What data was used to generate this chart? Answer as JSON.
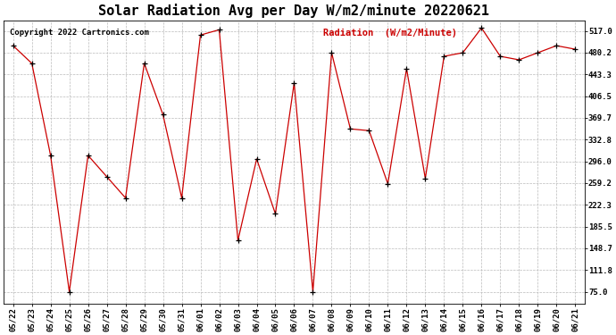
{
  "title": "Solar Radiation Avg per Day W/m2/minute 20220621",
  "copyright": "Copyright 2022 Cartronics.com",
  "legend_label": "Radiation  (W/m2/Minute)",
  "dates": [
    "05/22",
    "05/23",
    "05/24",
    "05/25",
    "05/26",
    "05/27",
    "05/28",
    "05/29",
    "05/30",
    "05/31",
    "06/01",
    "06/02",
    "06/03",
    "06/04",
    "06/05",
    "06/06",
    "06/07",
    "06/08",
    "06/09",
    "06/10",
    "06/11",
    "06/12",
    "06/13",
    "06/14",
    "06/15",
    "06/16",
    "06/17",
    "06/18",
    "06/19",
    "06/20",
    "06/21"
  ],
  "values": [
    492,
    462,
    306,
    75,
    306,
    270,
    234,
    462,
    375,
    234,
    510,
    519,
    162,
    300,
    207,
    429,
    75,
    480,
    351,
    348,
    258,
    453,
    267,
    474,
    480,
    522,
    474,
    468,
    480,
    492,
    486
  ],
  "line_color": "#cc0000",
  "marker": "+",
  "marker_color": "#000000",
  "yticks": [
    75.0,
    111.8,
    148.7,
    185.5,
    222.3,
    259.2,
    296.0,
    332.8,
    369.7,
    406.5,
    443.3,
    480.2,
    517.0
  ],
  "ylim": [
    55,
    535
  ],
  "background_color": "#ffffff",
  "grid_color": "#bbbbbb",
  "title_fontsize": 11,
  "tick_fontsize": 6.5,
  "copyright_fontsize": 6.5,
  "legend_fontsize": 7.5
}
